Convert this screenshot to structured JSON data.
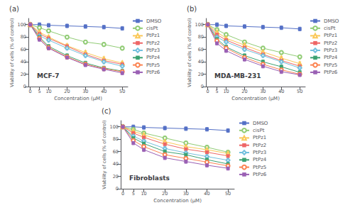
{
  "chart_data": [
    {
      "type": "line",
      "title": "MCF-7",
      "annotations": [
        "(a)"
      ],
      "xlabel": "Concentration (μM)",
      "ylabel": "Viability of cells (% of control)",
      "x": [
        0,
        5,
        10,
        20,
        30,
        40,
        50
      ],
      "xlim": [
        -1,
        53
      ],
      "xticks": [
        0,
        5,
        10,
        20,
        30,
        40,
        50
      ],
      "ylim": [
        0,
        110
      ],
      "yticks": [
        0,
        20,
        40,
        60,
        80,
        100
      ],
      "grid": false,
      "legend": "right",
      "series": [
        {
          "name": "DMSO",
          "marker": "square",
          "values": [
            100,
            100,
            99,
            98,
            97,
            96,
            94
          ],
          "error": [
            3,
            3,
            3,
            3,
            3,
            3,
            3
          ]
        },
        {
          "name": "cisPt",
          "marker": "open circle",
          "values": [
            100,
            95,
            90,
            80,
            72,
            68,
            62
          ],
          "error": [
            3,
            3,
            3,
            3,
            3,
            3,
            3
          ]
        },
        {
          "name": "PtPz1",
          "marker": "open triangle",
          "values": [
            100,
            88,
            80,
            66,
            55,
            45,
            38
          ],
          "error": [
            3,
            3,
            3,
            3,
            3,
            3,
            3
          ]
        },
        {
          "name": "PtPz2",
          "marker": "square",
          "values": [
            100,
            85,
            78,
            65,
            52,
            42,
            36
          ],
          "error": [
            3,
            3,
            3,
            3,
            3,
            3,
            3
          ]
        },
        {
          "name": "PtPz3",
          "marker": "open diamond",
          "values": [
            100,
            82,
            75,
            62,
            50,
            40,
            33
          ],
          "error": [
            3,
            3,
            3,
            3,
            3,
            3,
            3
          ]
        },
        {
          "name": "PtPz4",
          "marker": "square",
          "values": [
            100,
            80,
            65,
            50,
            38,
            30,
            25
          ],
          "error": [
            3,
            3,
            3,
            3,
            3,
            3,
            3
          ]
        },
        {
          "name": "PtPz5",
          "marker": "open circle",
          "values": [
            100,
            78,
            63,
            48,
            36,
            29,
            24
          ],
          "error": [
            3,
            3,
            3,
            3,
            3,
            3,
            3
          ]
        },
        {
          "name": "PtPz6",
          "marker": "square",
          "values": [
            100,
            76,
            62,
            47,
            35,
            28,
            22
          ],
          "error": [
            3,
            3,
            3,
            3,
            3,
            3,
            3
          ]
        }
      ]
    },
    {
      "type": "line",
      "title": "MDA-MB-231",
      "annotations": [
        "(b)"
      ],
      "xlabel": "Concentration (μM)",
      "ylabel": "Viability of cells (% of control)",
      "x": [
        0,
        5,
        10,
        20,
        30,
        40,
        50
      ],
      "xlim": [
        -1,
        53
      ],
      "xticks": [
        0,
        5,
        10,
        20,
        30,
        40,
        50
      ],
      "ylim": [
        0,
        110
      ],
      "yticks": [
        0,
        20,
        40,
        60,
        80,
        100
      ],
      "grid": false,
      "legend": "right",
      "series": [
        {
          "name": "DMSO",
          "marker": "square",
          "values": [
            100,
            100,
            98,
            97,
            96,
            95,
            93
          ],
          "error": [
            3,
            3,
            3,
            3,
            3,
            3,
            3
          ]
        },
        {
          "name": "cisPt",
          "marker": "open circle",
          "values": [
            100,
            92,
            84,
            72,
            62,
            55,
            48
          ],
          "error": [
            3,
            3,
            3,
            3,
            3,
            3,
            3
          ]
        },
        {
          "name": "PtPz1",
          "marker": "open triangle",
          "values": [
            100,
            88,
            78,
            67,
            56,
            46,
            37
          ],
          "error": [
            3,
            3,
            3,
            3,
            3,
            3,
            3
          ]
        },
        {
          "name": "PtPz2",
          "marker": "square",
          "values": [
            100,
            84,
            75,
            63,
            52,
            42,
            33
          ],
          "error": [
            3,
            3,
            3,
            3,
            3,
            3,
            3
          ]
        },
        {
          "name": "PtPz3",
          "marker": "open diamond",
          "values": [
            100,
            80,
            72,
            60,
            50,
            40,
            30
          ],
          "error": [
            3,
            3,
            3,
            3,
            3,
            3,
            3
          ]
        },
        {
          "name": "PtPz4",
          "marker": "square",
          "values": [
            100,
            77,
            64,
            50,
            40,
            32,
            23
          ],
          "error": [
            3,
            3,
            3,
            3,
            3,
            3,
            3
          ]
        },
        {
          "name": "PtPz5",
          "marker": "open circle",
          "values": [
            100,
            74,
            62,
            47,
            36,
            27,
            20
          ],
          "error": [
            3,
            3,
            3,
            3,
            3,
            3,
            3
          ]
        },
        {
          "name": "PtPz6",
          "marker": "square",
          "values": [
            100,
            70,
            58,
            44,
            33,
            24,
            19
          ],
          "error": [
            3,
            3,
            3,
            3,
            3,
            3,
            3
          ]
        }
      ]
    },
    {
      "type": "line",
      "title": "Fibroblasts",
      "annotations": [
        "(c)"
      ],
      "xlabel": "Concentration (μM)",
      "ylabel": "Viability of cells (% of control)",
      "x": [
        0,
        5,
        10,
        20,
        30,
        40,
        50
      ],
      "xlim": [
        -1,
        53
      ],
      "xticks": [
        0,
        5,
        10,
        20,
        30,
        40,
        50
      ],
      "ylim": [
        0,
        110
      ],
      "yticks": [
        0,
        20,
        40,
        60,
        80,
        100
      ],
      "grid": false,
      "legend": "right",
      "series": [
        {
          "name": "DMSO",
          "marker": "square",
          "values": [
            100,
            100,
            99,
            98,
            97,
            96,
            94
          ],
          "error": [
            3,
            3,
            3,
            3,
            3,
            3,
            3
          ]
        },
        {
          "name": "cisPt",
          "marker": "open circle",
          "values": [
            100,
            96,
            90,
            82,
            74,
            67,
            59
          ],
          "error": [
            3,
            3,
            3,
            3,
            3,
            3,
            3
          ]
        },
        {
          "name": "PtPz1",
          "marker": "open triangle",
          "values": [
            100,
            93,
            87,
            76,
            68,
            63,
            57
          ],
          "error": [
            3,
            3,
            3,
            3,
            3,
            3,
            3
          ]
        },
        {
          "name": "PtPz2",
          "marker": "square",
          "values": [
            100,
            90,
            83,
            72,
            64,
            59,
            53
          ],
          "error": [
            3,
            3,
            3,
            3,
            3,
            3,
            3
          ]
        },
        {
          "name": "PtPz3",
          "marker": "open diamond",
          "values": [
            100,
            85,
            77,
            65,
            58,
            52,
            46
          ],
          "error": [
            3,
            3,
            3,
            3,
            3,
            3,
            3
          ]
        },
        {
          "name": "PtPz4",
          "marker": "square",
          "values": [
            100,
            82,
            73,
            60,
            55,
            47,
            40
          ],
          "error": [
            3,
            3,
            3,
            3,
            3,
            3,
            3
          ]
        },
        {
          "name": "PtPz5",
          "marker": "open circle",
          "values": [
            100,
            78,
            68,
            55,
            49,
            43,
            37
          ],
          "error": [
            3,
            3,
            3,
            3,
            3,
            3,
            3
          ]
        },
        {
          "name": "PtPz6",
          "marker": "square",
          "values": [
            100,
            74,
            63,
            50,
            44,
            38,
            33
          ],
          "error": [
            3,
            3,
            3,
            3,
            3,
            3,
            3
          ]
        }
      ]
    }
  ]
}
